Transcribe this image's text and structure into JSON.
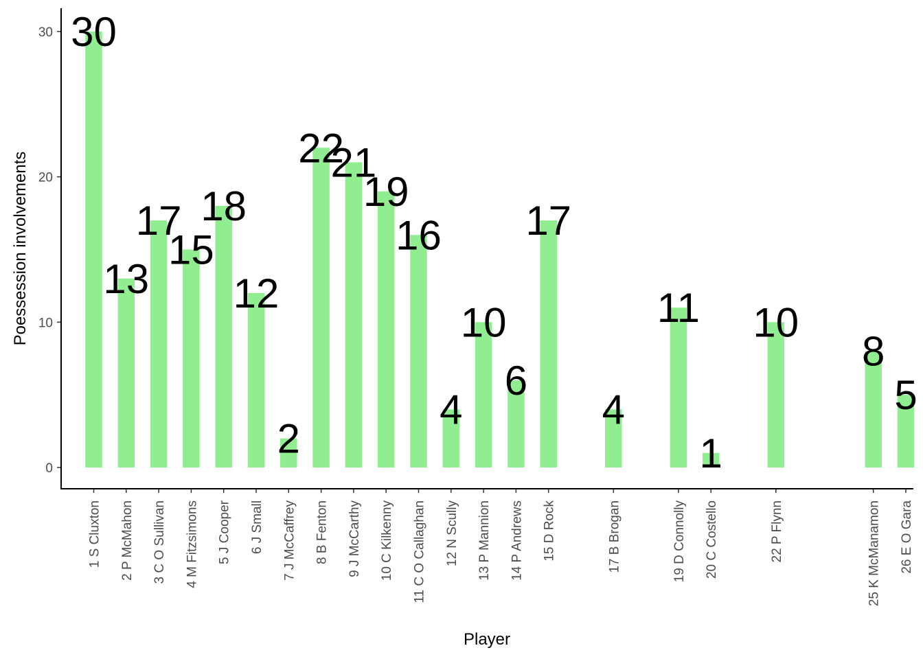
{
  "chart_data": {
    "type": "bar",
    "xlabel": "Player",
    "ylabel": "Poessession involvements",
    "ylim": [
      -1.5,
      31.5
    ],
    "yticks": [
      0,
      10,
      20,
      30
    ],
    "bar_color": "#90EE90",
    "grid": false,
    "legend": "none",
    "categories": [
      {
        "label": "1 S Cluxton",
        "number": 1,
        "value": 30
      },
      {
        "label": "2 P McMahon",
        "number": 2,
        "value": 13
      },
      {
        "label": "3 C O Sullivan",
        "number": 3,
        "value": 17
      },
      {
        "label": "4 M Fitzsimons",
        "number": 4,
        "value": 15
      },
      {
        "label": "5 J Cooper",
        "number": 5,
        "value": 18
      },
      {
        "label": "6 J Small",
        "number": 6,
        "value": 12
      },
      {
        "label": "7 J McCaffrey",
        "number": 7,
        "value": 2
      },
      {
        "label": "8 B Fenton",
        "number": 8,
        "value": 22
      },
      {
        "label": "9 J McCarthy",
        "number": 9,
        "value": 21
      },
      {
        "label": "10 C Kilkenny",
        "number": 10,
        "value": 19
      },
      {
        "label": "11 C O Callaghan",
        "number": 11,
        "value": 16
      },
      {
        "label": "12 N Scully",
        "number": 12,
        "value": 4
      },
      {
        "label": "13 P Mannion",
        "number": 13,
        "value": 10
      },
      {
        "label": "14 P Andrews",
        "number": 14,
        "value": 6
      },
      {
        "label": "15 D Rock",
        "number": 15,
        "value": 17
      },
      {
        "label": "17 B Brogan",
        "number": 17,
        "value": 4
      },
      {
        "label": "19 D Connolly",
        "number": 19,
        "value": 11
      },
      {
        "label": "20 C Costello",
        "number": 20,
        "value": 1
      },
      {
        "label": "22 P Flynn",
        "number": 22,
        "value": 10
      },
      {
        "label": "25 K McManamon",
        "number": 25,
        "value": 8
      },
      {
        "label": "26 E O Gara",
        "number": 26,
        "value": 5
      }
    ]
  }
}
